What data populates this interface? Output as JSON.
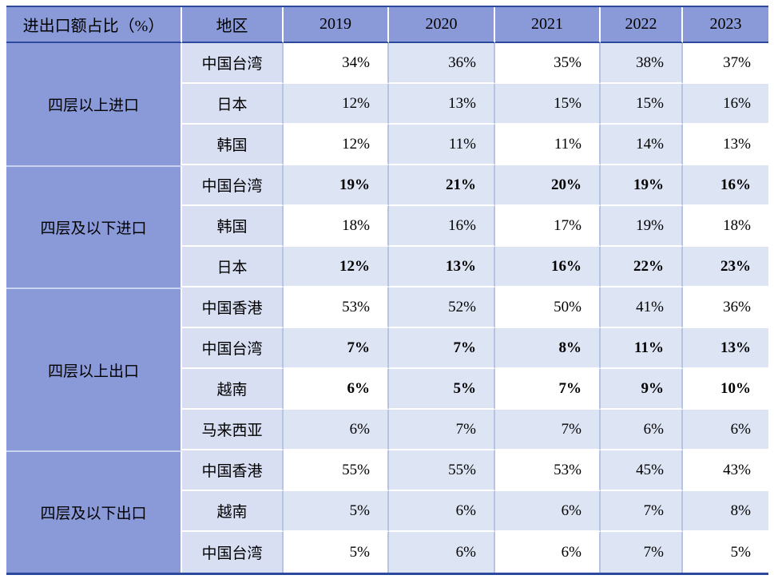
{
  "table": {
    "corner_header": "进出口额占比（%）",
    "region_header": "地区",
    "year_headers": [
      "2019",
      "2020",
      "2021",
      "2022",
      "2023"
    ],
    "groups": [
      {
        "label": "四层以上进口",
        "rows": [
          {
            "region": "中国台湾",
            "values": [
              "34%",
              "36%",
              "35%",
              "38%",
              "37%"
            ],
            "bold": false
          },
          {
            "region": "日本",
            "values": [
              "12%",
              "13%",
              "15%",
              "15%",
              "16%"
            ],
            "bold": false
          },
          {
            "region": "韩国",
            "values": [
              "12%",
              "11%",
              "11%",
              "14%",
              "13%"
            ],
            "bold": false
          }
        ]
      },
      {
        "label": "四层及以下进口",
        "rows": [
          {
            "region": "中国台湾",
            "values": [
              "19%",
              "21%",
              "20%",
              "19%",
              "16%"
            ],
            "bold": true
          },
          {
            "region": "韩国",
            "values": [
              "18%",
              "16%",
              "17%",
              "19%",
              "18%"
            ],
            "bold": false
          },
          {
            "region": "日本",
            "values": [
              "12%",
              "13%",
              "16%",
              "22%",
              "23%"
            ],
            "bold": true
          }
        ]
      },
      {
        "label": "四层以上出口",
        "rows": [
          {
            "region": "中国香港",
            "values": [
              "53%",
              "52%",
              "50%",
              "41%",
              "36%"
            ],
            "bold": false
          },
          {
            "region": "中国台湾",
            "values": [
              "7%",
              "7%",
              "8%",
              "11%",
              "13%"
            ],
            "bold": true
          },
          {
            "region": "越南",
            "values": [
              "6%",
              "5%",
              "7%",
              "9%",
              "10%"
            ],
            "bold": true
          },
          {
            "region": "马来西亚",
            "values": [
              "6%",
              "7%",
              "7%",
              "6%",
              "6%"
            ],
            "bold": false
          }
        ]
      },
      {
        "label": "四层及以下出口",
        "rows": [
          {
            "region": "中国香港",
            "values": [
              "55%",
              "55%",
              "53%",
              "45%",
              "43%"
            ],
            "bold": false
          },
          {
            "region": "越南",
            "values": [
              "5%",
              "6%",
              "6%",
              "7%",
              "8%"
            ],
            "bold": false
          },
          {
            "region": "中国台湾",
            "values": [
              "5%",
              "6%",
              "6%",
              "7%",
              "5%"
            ],
            "bold": false
          }
        ]
      }
    ],
    "colors": {
      "header_bg": "#8A9AD8",
      "group_column_bg": "#8A9AD8",
      "region_column_bg": "#D8DFF2",
      "shaded_cell_bg": "#DDE4F4",
      "white_cell_bg": "#FFFFFF",
      "dark_border": "#2B4A9E",
      "grid_line": "#B7C3E2"
    }
  },
  "chart_data": {
    "type": "table",
    "title": "进出口额占比（%）",
    "columns": [
      "进出口额占比（%）",
      "地区",
      "2019",
      "2020",
      "2021",
      "2022",
      "2023"
    ],
    "rows": [
      [
        "四层以上进口",
        "中国台湾",
        34,
        36,
        35,
        38,
        37
      ],
      [
        "四层以上进口",
        "日本",
        12,
        13,
        15,
        15,
        16
      ],
      [
        "四层以上进口",
        "韩国",
        12,
        11,
        11,
        14,
        13
      ],
      [
        "四层及以下进口",
        "中国台湾",
        19,
        21,
        20,
        19,
        16
      ],
      [
        "四层及以下进口",
        "韩国",
        18,
        16,
        17,
        19,
        18
      ],
      [
        "四层及以下进口",
        "日本",
        12,
        13,
        16,
        22,
        23
      ],
      [
        "四层以上出口",
        "中国香港",
        53,
        52,
        50,
        41,
        36
      ],
      [
        "四层以上出口",
        "中国台湾",
        7,
        7,
        8,
        11,
        13
      ],
      [
        "四层以上出口",
        "越南",
        6,
        5,
        7,
        9,
        10
      ],
      [
        "四层以上出口",
        "马来西亚",
        6,
        7,
        7,
        6,
        6
      ],
      [
        "四层及以下出口",
        "中国香港",
        55,
        55,
        53,
        45,
        43
      ],
      [
        "四层及以下出口",
        "越南",
        5,
        6,
        6,
        7,
        8
      ],
      [
        "四层及以下出口",
        "中国台湾",
        5,
        6,
        6,
        7,
        5
      ]
    ],
    "units": "percent",
    "bold_rows": [
      [
        "四层及以下进口",
        "中国台湾"
      ],
      [
        "四层及以下进口",
        "日本"
      ],
      [
        "四层以上出口",
        "中国台湾"
      ],
      [
        "四层以上出口",
        "越南"
      ]
    ]
  }
}
